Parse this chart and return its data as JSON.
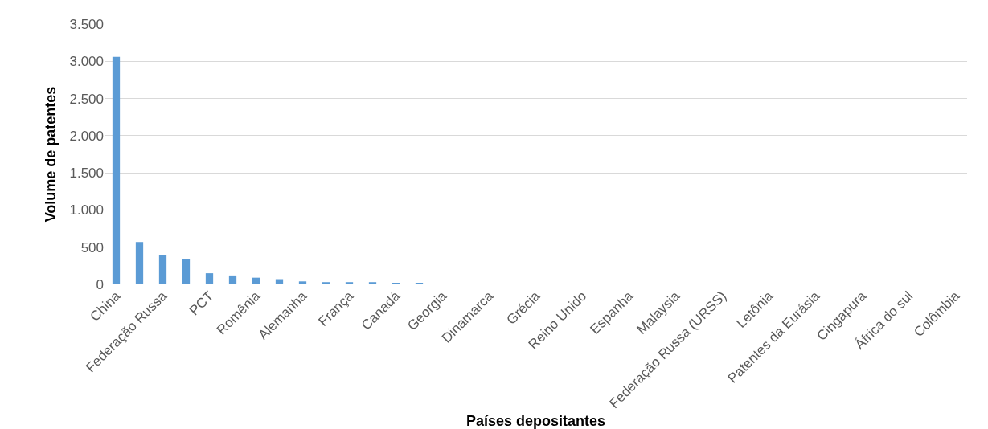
{
  "chart_data": {
    "type": "bar",
    "xlabel": "Países depositantes",
    "ylabel": "Volume de patentes",
    "categories": [
      "China",
      null,
      "Federação Russa",
      null,
      "PCT",
      null,
      "Romênia",
      null,
      "Alemanha",
      null,
      "França",
      null,
      "Canadá",
      null,
      "Georgia",
      null,
      "Dinamarca",
      null,
      "Grécia",
      null,
      "Reino Unido",
      null,
      "Espanha",
      null,
      "Malaysia",
      null,
      "Federação Russa (URSS)",
      null,
      "Letônia",
      null,
      "Patentes da Eurásia",
      null,
      "Cingapura",
      null,
      "África do sul",
      null,
      "Colômbia"
    ],
    "values": [
      3060,
      570,
      390,
      340,
      150,
      120,
      90,
      70,
      40,
      30,
      30,
      30,
      20,
      20,
      10,
      10,
      10,
      10,
      10,
      0,
      0,
      0,
      0,
      0,
      0,
      0,
      0,
      0,
      0,
      0,
      0,
      0,
      0,
      0,
      0,
      0,
      0
    ],
    "color": "#5b9bd5",
    "ylim": [
      0,
      3500
    ],
    "yticks": [
      {
        "value": 0,
        "label": "0"
      },
      {
        "value": 500,
        "label": "500"
      },
      {
        "value": 1000,
        "label": "1.000"
      },
      {
        "value": 1500,
        "label": "1.500"
      },
      {
        "value": 2000,
        "label": "2.000"
      },
      {
        "value": 2500,
        "label": "2.500"
      },
      {
        "value": 3000,
        "label": "3.000"
      },
      {
        "value": 3500,
        "label": "3.500"
      }
    ],
    "grid": "y"
  }
}
